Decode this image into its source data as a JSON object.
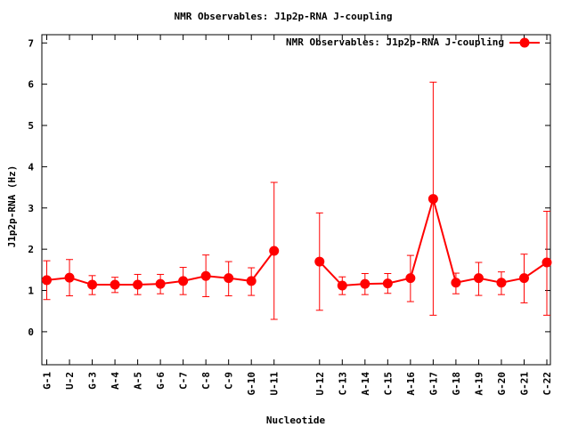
{
  "chart_data": {
    "type": "line",
    "title": "NMR Observables: J1p2p-RNA J-coupling",
    "xlabel": "Nucleotide",
    "ylabel": "J1p2p-RNA (Hz)",
    "ylim": [
      -0.8,
      7.2
    ],
    "yticks": [
      0,
      1,
      2,
      3,
      4,
      5,
      6,
      7
    ],
    "grid": false,
    "legend_position": "top-right",
    "categories": [
      "G-1",
      "U-2",
      "G-3",
      "A-4",
      "A-5",
      "G-6",
      "C-7",
      "C-8",
      "C-9",
      "G-10",
      "U-11",
      "",
      "U-12",
      "C-13",
      "A-14",
      "C-15",
      "A-16",
      "G-17",
      "G-18",
      "A-19",
      "G-20",
      "G-21",
      "C-22"
    ],
    "series": [
      {
        "name": "NMR Observables: J1p2p-RNA J-coupling",
        "color": "#ff0000",
        "values": [
          1.25,
          1.31,
          1.14,
          1.14,
          1.14,
          1.16,
          1.23,
          1.35,
          1.3,
          1.23,
          1.96,
          null,
          1.7,
          1.12,
          1.16,
          1.17,
          1.3,
          3.22,
          1.19,
          1.3,
          1.19,
          1.3,
          1.68
        ],
        "err_low": [
          0.78,
          0.87,
          0.9,
          0.95,
          0.9,
          0.92,
          0.9,
          0.85,
          0.87,
          0.88,
          0.3,
          null,
          0.52,
          0.9,
          0.9,
          0.93,
          0.73,
          0.4,
          0.92,
          0.88,
          0.9,
          0.7,
          0.4
        ],
        "err_high": [
          1.72,
          1.75,
          1.36,
          1.32,
          1.39,
          1.39,
          1.56,
          1.86,
          1.7,
          1.55,
          3.62,
          null,
          2.88,
          1.33,
          1.41,
          1.41,
          1.85,
          6.05,
          1.42,
          1.68,
          1.45,
          1.88,
          2.92
        ]
      }
    ]
  }
}
